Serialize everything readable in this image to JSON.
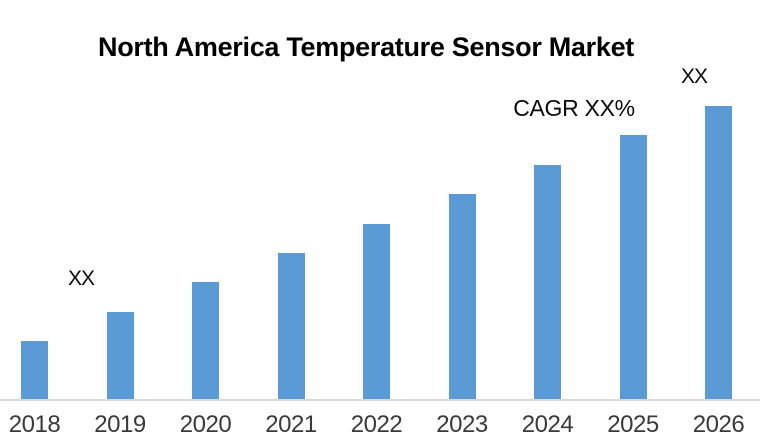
{
  "chart_data": {
    "type": "bar",
    "title": "North America Temperature Sensor Market",
    "categories": [
      "2018",
      "2019",
      "2020",
      "2021",
      "2022",
      "2023",
      "2024",
      "2025",
      "2026"
    ],
    "values": [
      2,
      3,
      4,
      5,
      6,
      7,
      8,
      9,
      10
    ],
    "xlabel": "",
    "ylabel": "",
    "ylim": [
      0,
      12
    ],
    "grid": false,
    "legend": false,
    "y_axis_visible": false,
    "bar_color": "#5B9BD5",
    "axis_line_color": "#D9D9D9",
    "annotations": [
      {
        "text": "XX",
        "target_category": "2019",
        "position": "above-left"
      },
      {
        "text": "CAGR XX%",
        "target_category": "2024",
        "position": "above"
      },
      {
        "text": "XX",
        "target_category": "2026",
        "position": "above"
      }
    ]
  },
  "annotations": {
    "bar_2019_label": "XX",
    "cagr_label": "CAGR XX%",
    "bar_2026_label": "XX"
  }
}
